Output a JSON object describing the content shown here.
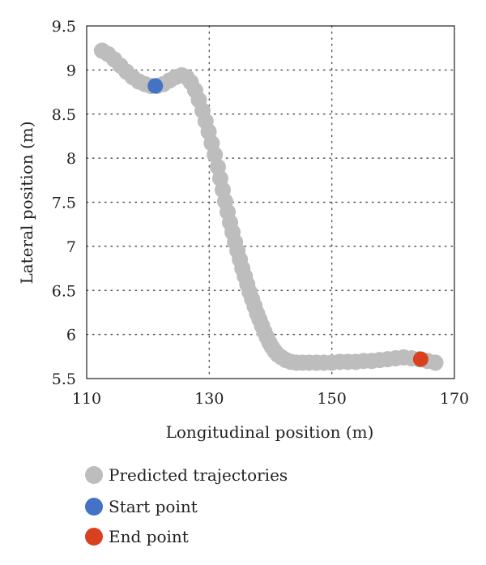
{
  "chart_data": {
    "type": "scatter",
    "title": "",
    "xlabel": "Longitudinal position (m)",
    "ylabel": "Lateral position (m)",
    "xlim": [
      110,
      170
    ],
    "ylim": [
      5.5,
      9.5
    ],
    "xticks": [
      110,
      130,
      150,
      170
    ],
    "yticks": [
      5.5,
      6,
      6.5,
      7,
      7.5,
      8,
      8.5,
      9,
      9.5
    ],
    "grid": "dotted",
    "legend_position": "bottom-left",
    "series": [
      {
        "name": "Predicted trajectories",
        "color": "#bdbdbd",
        "marker": "circle",
        "x": [
          112.5,
          113.5,
          114.5,
          115.5,
          116.5,
          117.5,
          118.5,
          119.5,
          120.5,
          121.5,
          122.5,
          123.5,
          124.5,
          125.5,
          126.3,
          127.0,
          127.7,
          128.3,
          128.9,
          129.4,
          129.9,
          130.4,
          130.9,
          131.4,
          131.8,
          132.2,
          132.6,
          133.0,
          133.4,
          133.8,
          134.2,
          134.6,
          135.0,
          135.4,
          135.8,
          136.2,
          136.6,
          137.0,
          137.4,
          137.8,
          138.2,
          138.6,
          139.0,
          139.4,
          139.8,
          140.2,
          140.7,
          141.2,
          141.8,
          142.5,
          143.3,
          144.2,
          145.2,
          146.3,
          147.5,
          148.7,
          150.0,
          151.3,
          152.6,
          153.9,
          155.2,
          156.5,
          157.8,
          159.1,
          160.4,
          161.7,
          163.0,
          164.3,
          165.6,
          166.9
        ],
        "y": [
          9.22,
          9.18,
          9.12,
          9.05,
          8.98,
          8.92,
          8.87,
          8.84,
          8.82,
          8.82,
          8.84,
          8.88,
          8.92,
          8.94,
          8.92,
          8.86,
          8.77,
          8.66,
          8.54,
          8.42,
          8.3,
          8.17,
          8.04,
          7.9,
          7.77,
          7.64,
          7.51,
          7.39,
          7.27,
          7.16,
          7.05,
          6.95,
          6.85,
          6.75,
          6.66,
          6.57,
          6.48,
          6.4,
          6.32,
          6.24,
          6.17,
          6.1,
          6.03,
          5.97,
          5.91,
          5.86,
          5.81,
          5.77,
          5.74,
          5.71,
          5.69,
          5.68,
          5.68,
          5.68,
          5.68,
          5.68,
          5.68,
          5.69,
          5.69,
          5.69,
          5.7,
          5.7,
          5.71,
          5.72,
          5.73,
          5.74,
          5.73,
          5.72,
          5.7,
          5.68
        ]
      },
      {
        "name": "Start point",
        "color": "#4472c4",
        "marker": "circle",
        "x": [
          121.2
        ],
        "y": [
          8.82
        ]
      },
      {
        "name": "End point",
        "color": "#d9401e",
        "marker": "circle",
        "x": [
          164.5
        ],
        "y": [
          5.72
        ]
      }
    ]
  }
}
